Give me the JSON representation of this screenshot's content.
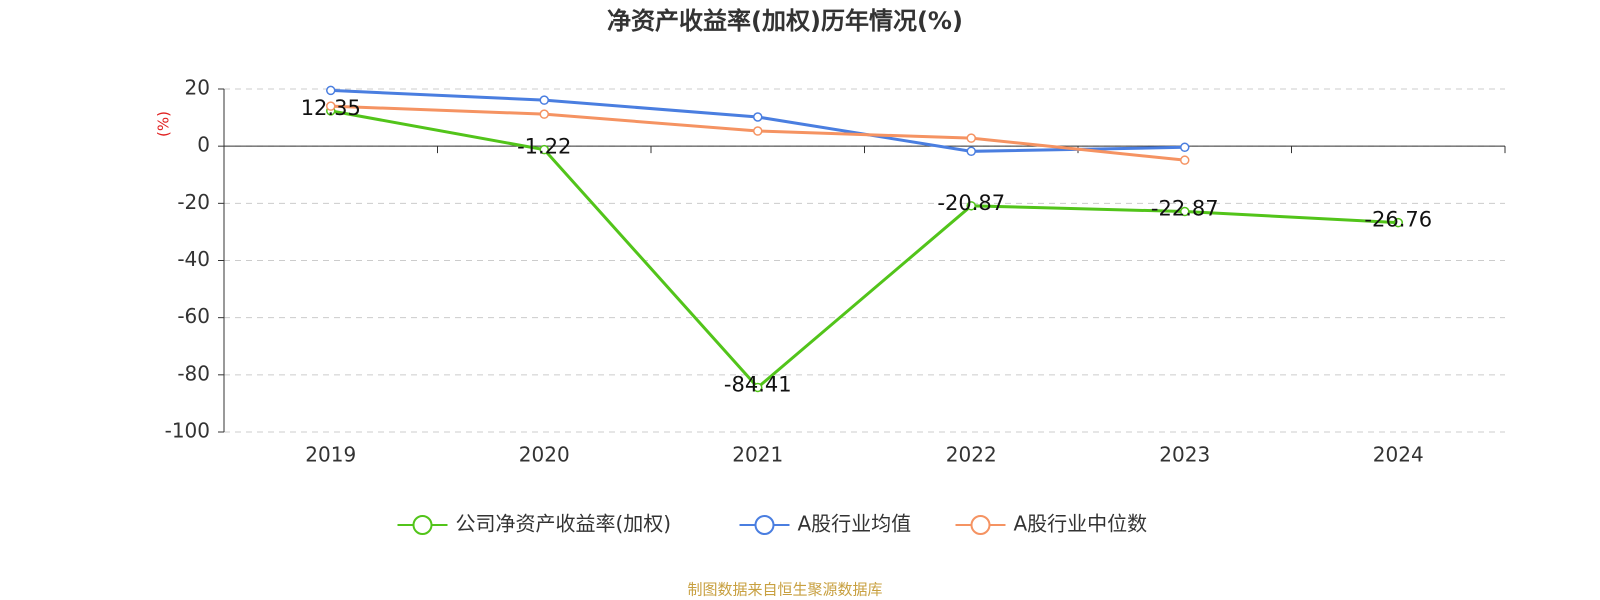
{
  "chart_data": {
    "type": "line",
    "title": "净资产收益率(加权)历年情况(%)",
    "y_label": "(%)",
    "source": "制图数据来自恒生聚源数据库",
    "categories": [
      "2019",
      "2020",
      "2021",
      "2022",
      "2023",
      "2024"
    ],
    "series": [
      {
        "name": "公司净资产收益率(加权)",
        "color": "#52c41a",
        "values": [
          12.35,
          -1.22,
          -84.41,
          -20.87,
          -22.87,
          -26.76
        ],
        "show_labels": true
      },
      {
        "name": "A股行业均值",
        "color": "#4a7ee0",
        "values": [
          19.5,
          16.1,
          10.2,
          -1.8,
          -0.4,
          null
        ],
        "show_labels": false
      },
      {
        "name": "A股行业中位数",
        "color": "#f59362",
        "values": [
          14.0,
          11.2,
          5.3,
          2.8,
          -4.9,
          null
        ],
        "show_labels": false
      }
    ],
    "ylim": [
      -100,
      20
    ],
    "yticks": [
      -100,
      -80,
      -60,
      -40,
      -20,
      0,
      20
    ],
    "grid": true,
    "legend": "bottom"
  }
}
